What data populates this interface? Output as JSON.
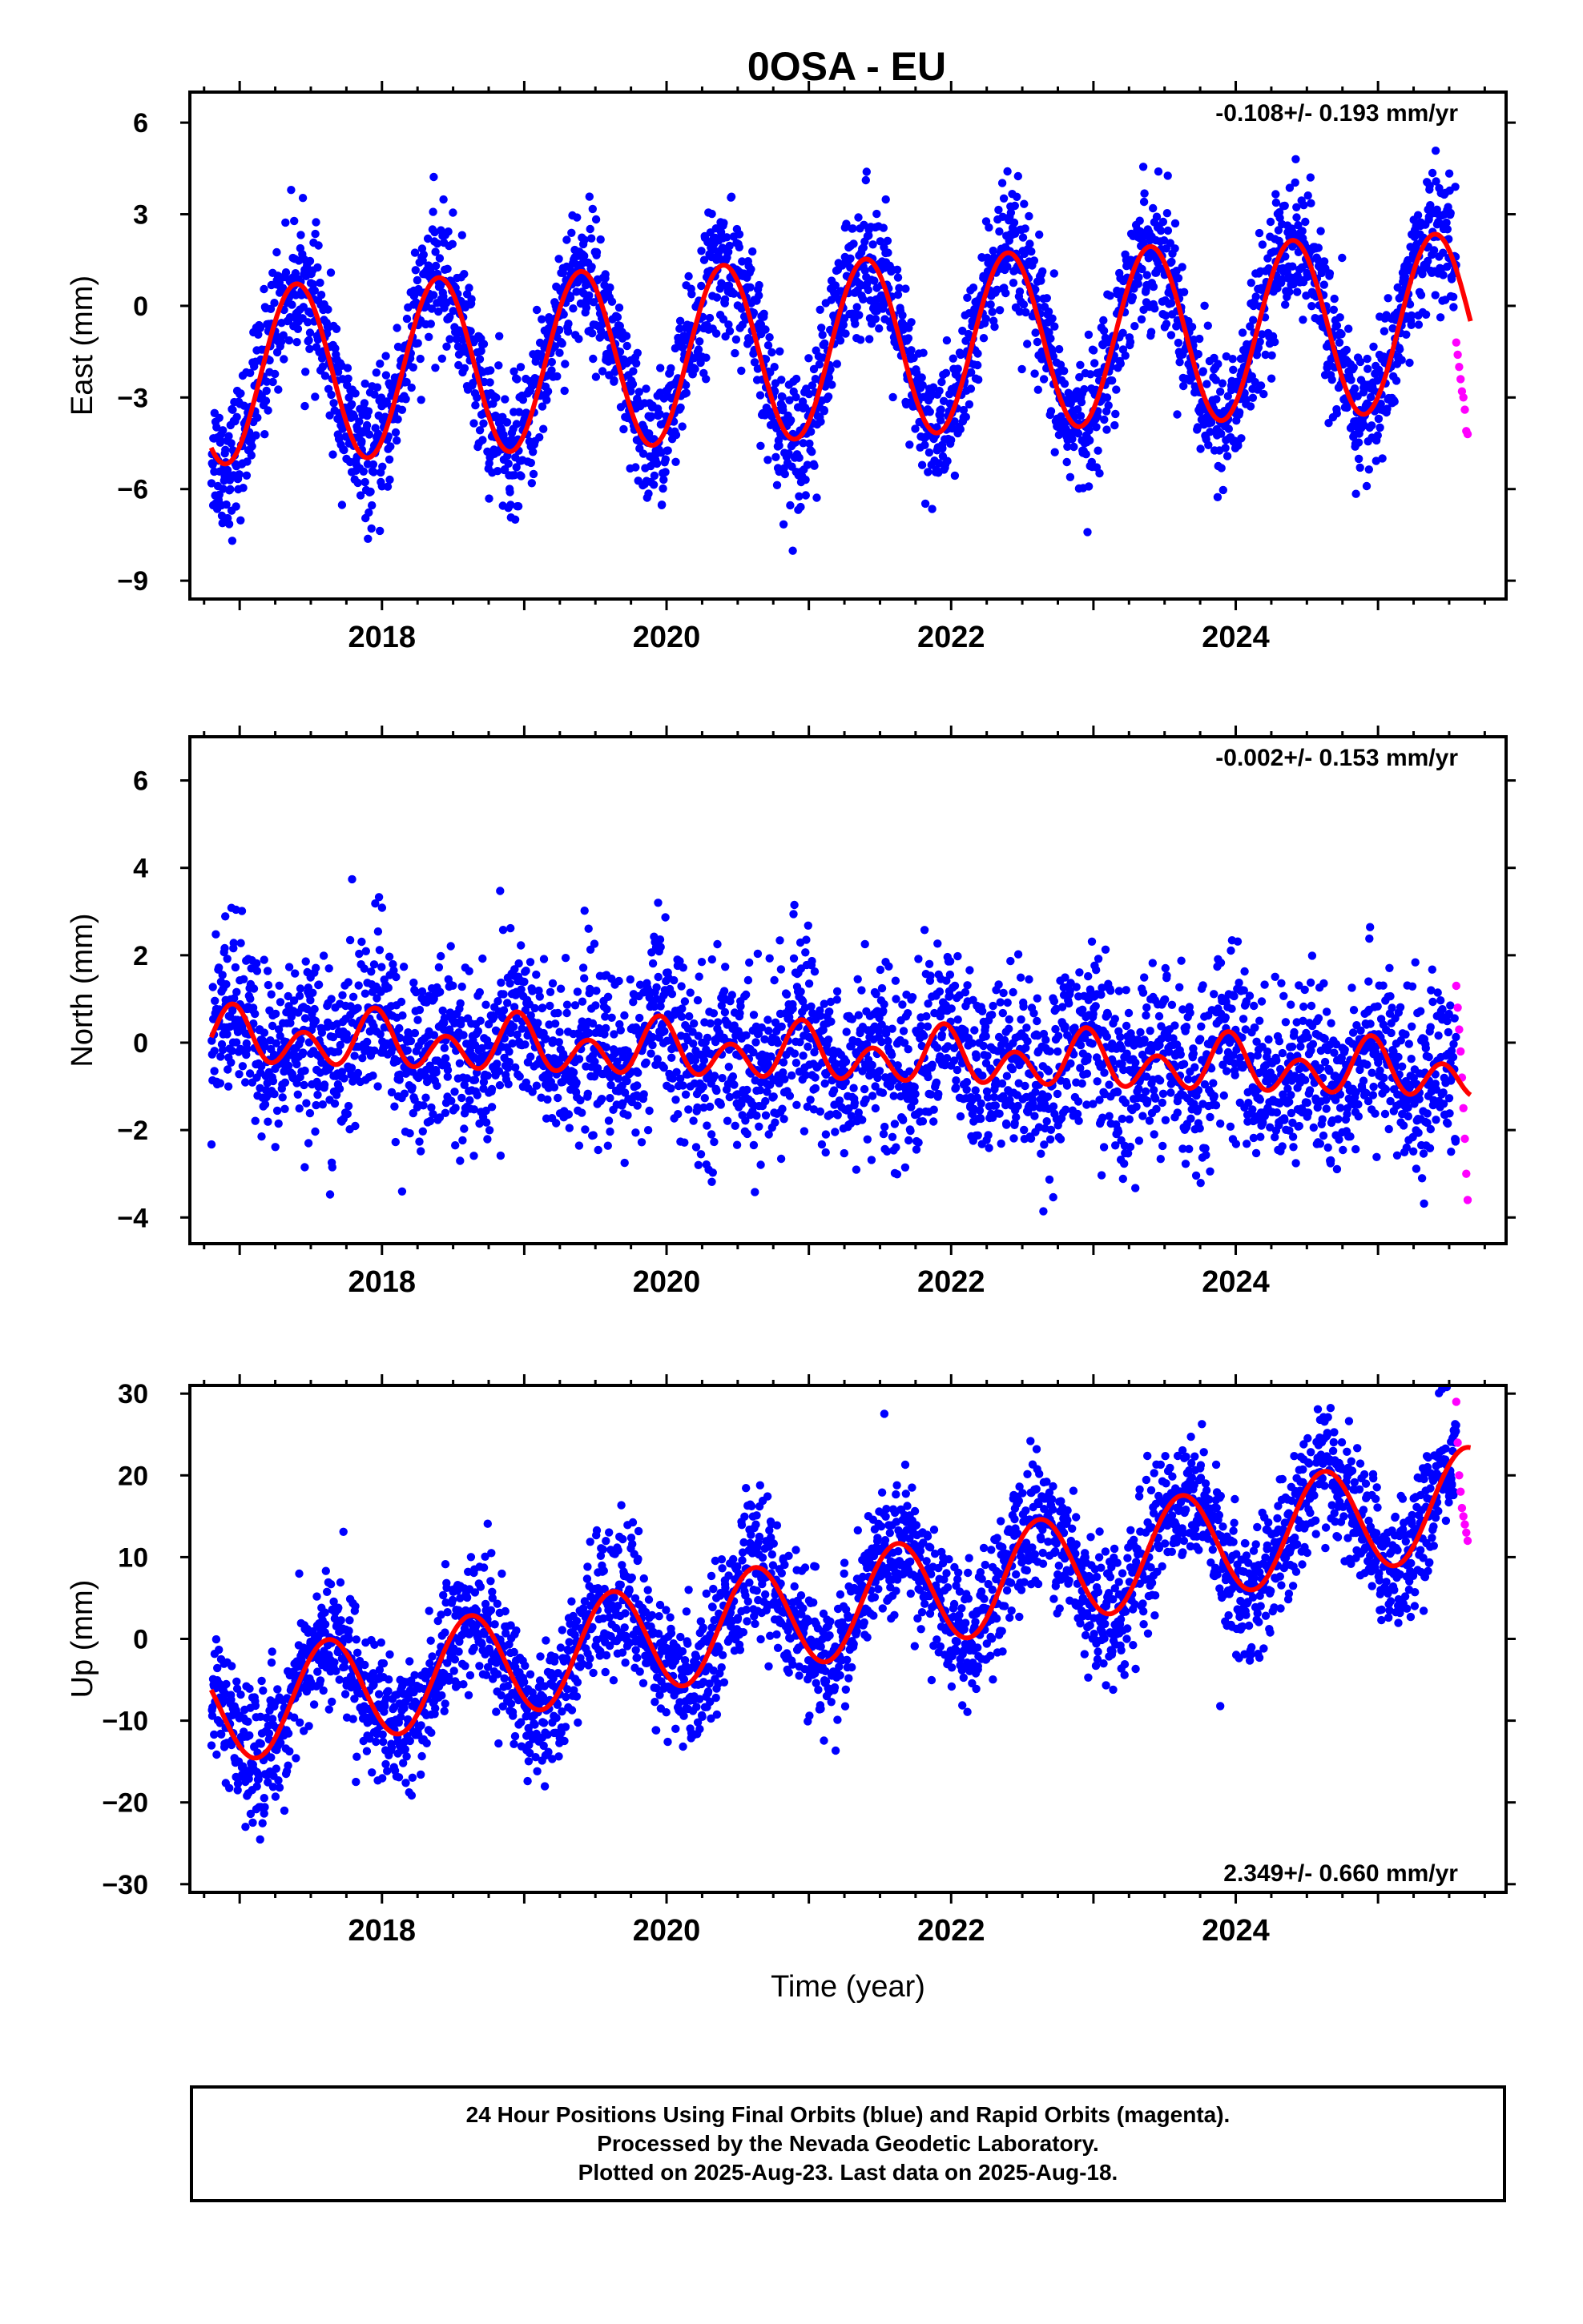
{
  "chart_data": [
    {
      "type": "scatter",
      "title": "0OSA - EU",
      "xlabel": "",
      "ylabel": "East (mm)",
      "xlim": [
        2016.65,
        2025.9
      ],
      "ylim": [
        -9.6,
        7.0
      ],
      "xticks": [
        "2018",
        "2020",
        "2022",
        "2024"
      ],
      "yticks": [
        "6",
        "3",
        "0",
        "−3",
        "−6",
        "−9"
      ],
      "rate_text": "-0.108+/- 0.193 mm/yr",
      "rate_position": "top-right",
      "fit": {
        "start_year": 2016.8,
        "end_year": 2025.65,
        "start_value": -2.3,
        "end_value": -0.5,
        "amplitude_annual": 2.9,
        "amplitude_semiannual": 0.0,
        "peak_year_phase": 0.4,
        "secular_rate_mm_per_yr": -0.108
      },
      "series": [
        {
          "name": "Final Orbits",
          "color": "#0000ff",
          "start_year": 2016.8,
          "end_year": 2025.55,
          "scatter_mm": 1.1
        },
        {
          "name": "Rapid Orbits",
          "color": "#ff00ff",
          "start_year": 2025.55,
          "end_year": 2025.63,
          "values": [
            -1.2,
            -1.6,
            -2.0,
            -2.4,
            -2.8,
            -3.0,
            -3.4,
            -4.1,
            -4.2
          ]
        }
      ],
      "grid": false
    },
    {
      "type": "scatter",
      "title": "",
      "xlabel": "",
      "ylabel": "North (mm)",
      "xlim": [
        2016.65,
        2025.9
      ],
      "ylim": [
        -4.6,
        7.0
      ],
      "xticks": [
        "2018",
        "2020",
        "2022",
        "2024"
      ],
      "yticks": [
        "6",
        "4",
        "2",
        "0",
        "−2",
        "−4"
      ],
      "rate_text": "-0.002+/- 0.153 mm/yr",
      "rate_position": "top-right",
      "fit": {
        "start_year": 2016.8,
        "end_year": 2025.65,
        "start_value": 0.1,
        "end_value": -0.7,
        "amplitude_annual": 0.3,
        "amplitude_semiannual": 0.5,
        "peak_year_phase": 0.95,
        "secular_rate_mm_per_yr": -0.002
      },
      "series": [
        {
          "name": "Final Orbits",
          "color": "#0000ff",
          "start_year": 2016.8,
          "end_year": 2025.55,
          "scatter_mm": 1.0
        },
        {
          "name": "Rapid Orbits",
          "color": "#ff00ff",
          "start_year": 2025.55,
          "end_year": 2025.63,
          "values": [
            1.3,
            0.8,
            0.3,
            -0.2,
            -0.8,
            -1.5,
            -2.2,
            -3.0,
            -3.6
          ]
        }
      ],
      "grid": false
    },
    {
      "type": "scatter",
      "title": "",
      "xlabel": "Time (year)",
      "ylabel": "Up (mm)",
      "xlim": [
        2016.65,
        2025.9
      ],
      "ylim": [
        -31,
        31
      ],
      "xticks": [
        "2018",
        "2020",
        "2022",
        "2024"
      ],
      "yticks": [
        "30",
        "20",
        "10",
        "0",
        "−10",
        "−20",
        "−30"
      ],
      "rate_text": "2.349+/- 0.660 mm/yr",
      "rate_position": "bottom-right",
      "fit": {
        "start_year": 2016.8,
        "end_year": 2025.65,
        "start_value": -9.0,
        "end_value": 17.0,
        "amplitude_annual": 6.5,
        "amplitude_semiannual": 0.0,
        "peak_year_phase": 0.62,
        "secular_rate_mm_per_yr": 2.349
      },
      "series": [
        {
          "name": "Final Orbits",
          "color": "#0000ff",
          "start_year": 2016.8,
          "end_year": 2025.55,
          "scatter_mm": 4.0
        },
        {
          "name": "Rapid Orbits",
          "color": "#ff00ff",
          "start_year": 2025.55,
          "end_year": 2025.63,
          "values": [
            29,
            24,
            20,
            18,
            16,
            15,
            14,
            13,
            12
          ]
        }
      ],
      "grid": false
    }
  ],
  "footer": {
    "line1": "24 Hour Positions Using Final Orbits (blue) and Rapid Orbits (magenta).",
    "line2": "Processed by the Nevada Geodetic Laboratory.",
    "line3": "Plotted on 2025-Aug-23. Last data on 2025-Aug-18."
  },
  "colors": {
    "final": "#0000ff",
    "rapid": "#ff00ff",
    "fit": "#ff0000",
    "frame": "#000000"
  }
}
